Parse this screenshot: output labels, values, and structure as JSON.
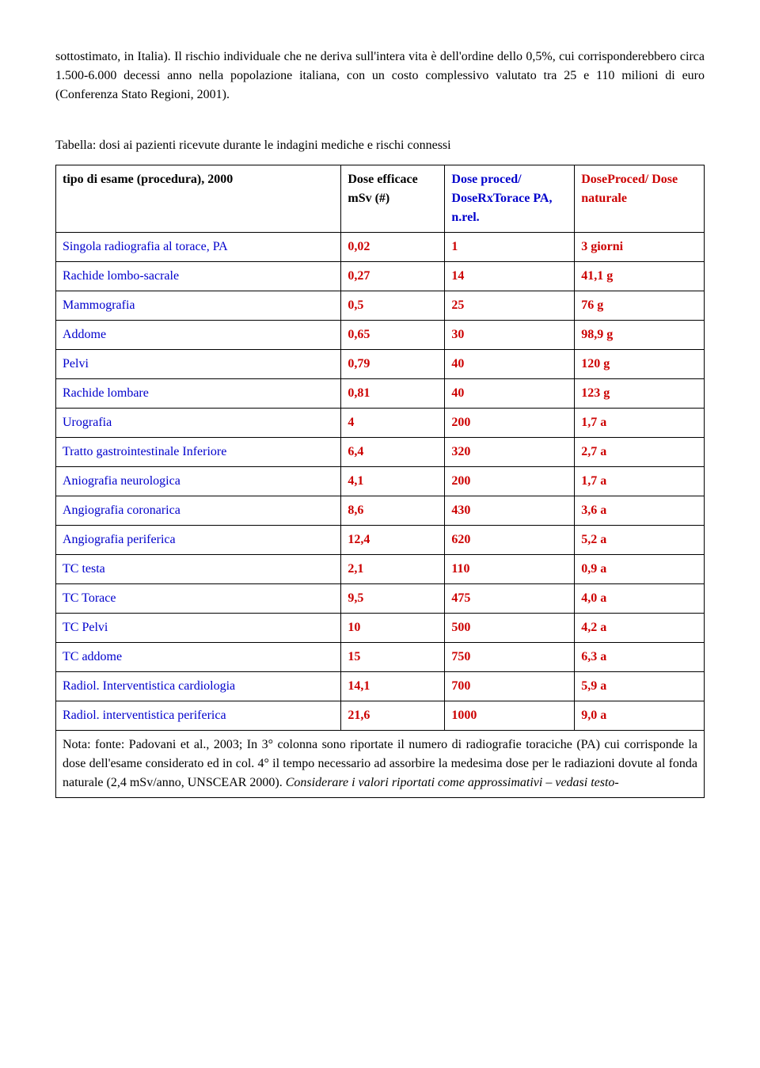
{
  "intro": {
    "p1": "sottostimato, in Italia). Il rischio individuale che ne deriva sull'intera vita è dell'ordine dello 0,5%, cui corrisponderebbero circa 1.500-6.000 decessi anno nella popolazione italiana, con un costo complessivo valutato tra 25 e 110 milioni di euro (Conferenza Stato Regioni, 2001)."
  },
  "tableTitle": "Tabella: dosi ai pazienti ricevute durante le indagini mediche e rischi connessi",
  "headers": {
    "h0": "tipo di esame (procedura), 2000",
    "h1": "Dose efficace mSv (#)",
    "h2": "Dose proced/ DoseRxTorace PA, n.rel.",
    "h3": "DoseProced/ Dose naturale"
  },
  "rows": [
    {
      "name": "Singola radiografia al torace, PA",
      "dose": "0,02",
      "rel": "1",
      "nat": "3 giorni"
    },
    {
      "name": "Rachide lombo-sacrale",
      "dose": "0,27",
      "rel": "14",
      "nat": "41,1 g"
    },
    {
      "name": "Mammografia",
      "dose": "0,5",
      "rel": "25",
      "nat": "76 g"
    },
    {
      "name": "Addome",
      "dose": "0,65",
      "rel": "30",
      "nat": "98,9 g"
    },
    {
      "name": "Pelvi",
      "dose": "0,79",
      "rel": "40",
      "nat": "120 g"
    },
    {
      "name": "Rachide lombare",
      "dose": "0,81",
      "rel": "40",
      "nat": "123 g"
    },
    {
      "name": "Urografia",
      "dose": "4",
      "rel": "200",
      "nat": "1,7 a"
    },
    {
      "name": "Tratto gastrointestinale Inferiore",
      "dose": "6,4",
      "rel": "320",
      "nat": "2,7 a"
    },
    {
      "name": "Aniografia neurologica",
      "dose": "4,1",
      "rel": "200",
      "nat": "1,7 a"
    },
    {
      "name": "Angiografia coronarica",
      "dose": "8,6",
      "rel": "430",
      "nat": "3,6 a"
    },
    {
      "name": "Angiografia periferica",
      "dose": "12,4",
      "rel": "620",
      "nat": "5,2 a"
    },
    {
      "name": "TC testa",
      "dose": "2,1",
      "rel": "110",
      "nat": "0,9 a"
    },
    {
      "name": "TC Torace",
      "dose": "9,5",
      "rel": "475",
      "nat": "4,0 a"
    },
    {
      "name": "TC Pelvi",
      "dose": "10",
      "rel": "500",
      "nat": "4,2 a"
    },
    {
      "name": "TC addome",
      "dose": "15",
      "rel": "750",
      "nat": "6,3 a"
    },
    {
      "name": "Radiol. Interventistica cardiologia",
      "dose": "14,1",
      "rel": "700",
      "nat": "5,9 a"
    },
    {
      "name": "Radiol. interventistica periferica",
      "dose": "21,6",
      "rel": "1000",
      "nat": "9,0 a"
    }
  ],
  "note": {
    "text": "Nota: fonte: Padovani et al., 2003; In 3° colonna sono riportate il numero di radiografie toraciche (PA) cui corrisponde la dose dell'esame considerato ed in col. 4° il tempo necessario ad assorbire la medesima dose per le radiazioni dovute al fonda naturale (2,4 mSv/anno, UNSCEAR 2000). ",
    "italic": "Considerare i valori riportati come approssimativi – vedasi testo-"
  }
}
